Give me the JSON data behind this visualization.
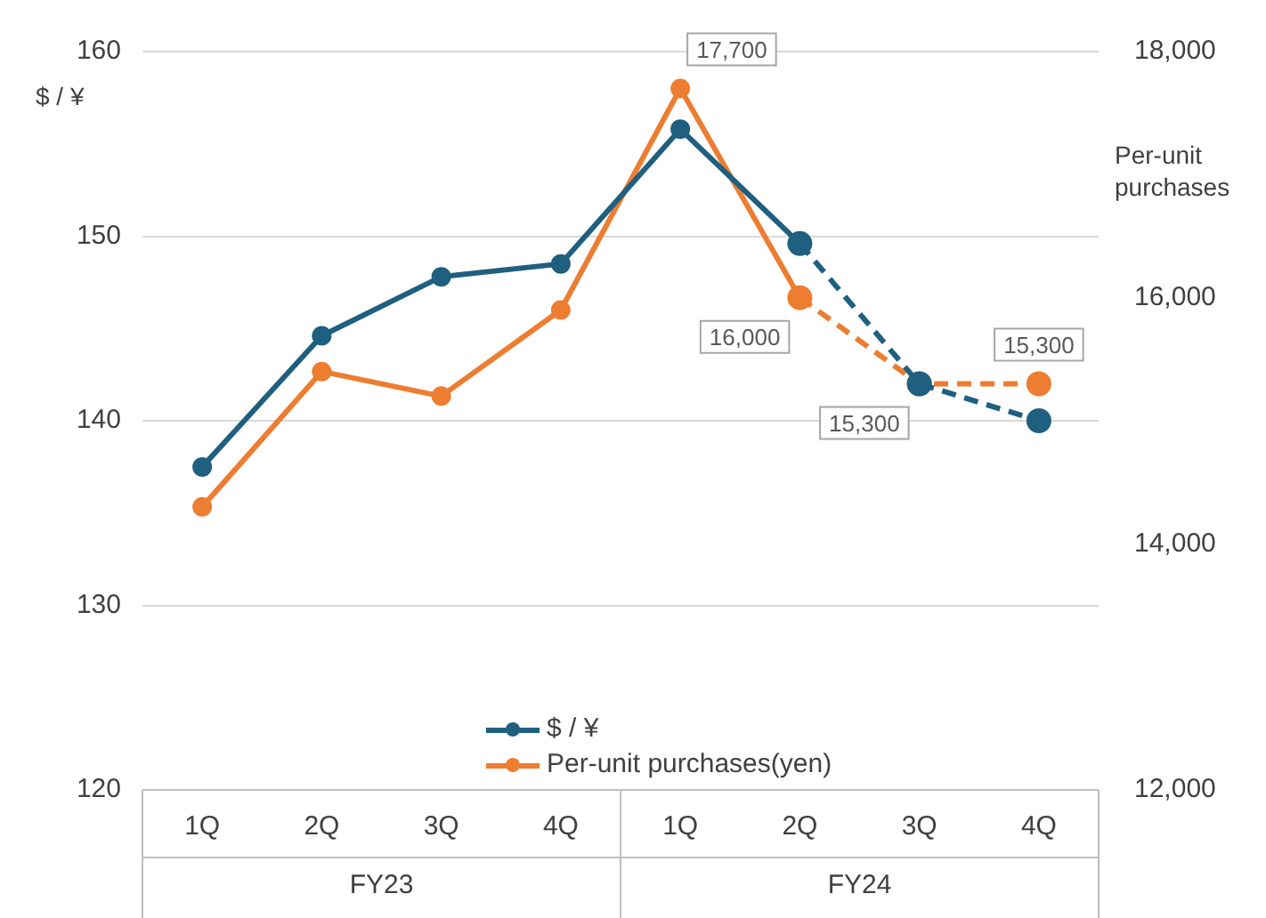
{
  "chart_data": {
    "type": "line",
    "categories": [
      "1Q",
      "2Q",
      "3Q",
      "4Q",
      "1Q",
      "2Q",
      "3Q",
      "4Q"
    ],
    "ylabel": "$ / ¥",
    "y2label": "Per-unit purchases",
    "ylim": [
      120,
      160
    ],
    "yticks": [
      120,
      130,
      140,
      150,
      160
    ],
    "y2lim": [
      12000,
      18000
    ],
    "y2ticks": [
      {
        "value": 12000,
        "label": "12,000"
      },
      {
        "value": 14000,
        "label": "14,000"
      },
      {
        "value": 16000,
        "label": "16,000"
      },
      {
        "value": 18000,
        "label": "18,000"
      }
    ],
    "series": [
      {
        "name": "$ / ¥",
        "color": "#1f5f7f",
        "values": [
          137.5,
          144.6,
          147.8,
          148.5,
          155.8,
          149.6,
          null,
          null
        ]
      },
      {
        "name": "Per-unit purchases(yen)",
        "color": "#ed7d31",
        "axis": "y2",
        "values": [
          14300,
          15400,
          15200,
          15900,
          17700,
          16000,
          null,
          null
        ],
        "value_labels": [
          null,
          null,
          null,
          null,
          "17,700",
          "16,000",
          null,
          null
        ]
      },
      {
        "color": "#1f5f7f",
        "line_style": "dashed",
        "values": [
          null,
          null,
          null,
          null,
          null,
          149.6,
          142.0,
          140.0
        ]
      },
      {
        "color": "#ed7d31",
        "axis": "y2",
        "line_style": "dashed",
        "values": [
          null,
          null,
          null,
          null,
          null,
          16000,
          15300,
          15300
        ],
        "value_labels": [
          null,
          null,
          null,
          null,
          null,
          null,
          "15,300",
          "15,300"
        ]
      }
    ],
    "annotations": [
      "FY23",
      "FY24"
    ],
    "grid": "y",
    "legend": "bottom",
    "marker": "circle",
    "line_style": "solid"
  }
}
